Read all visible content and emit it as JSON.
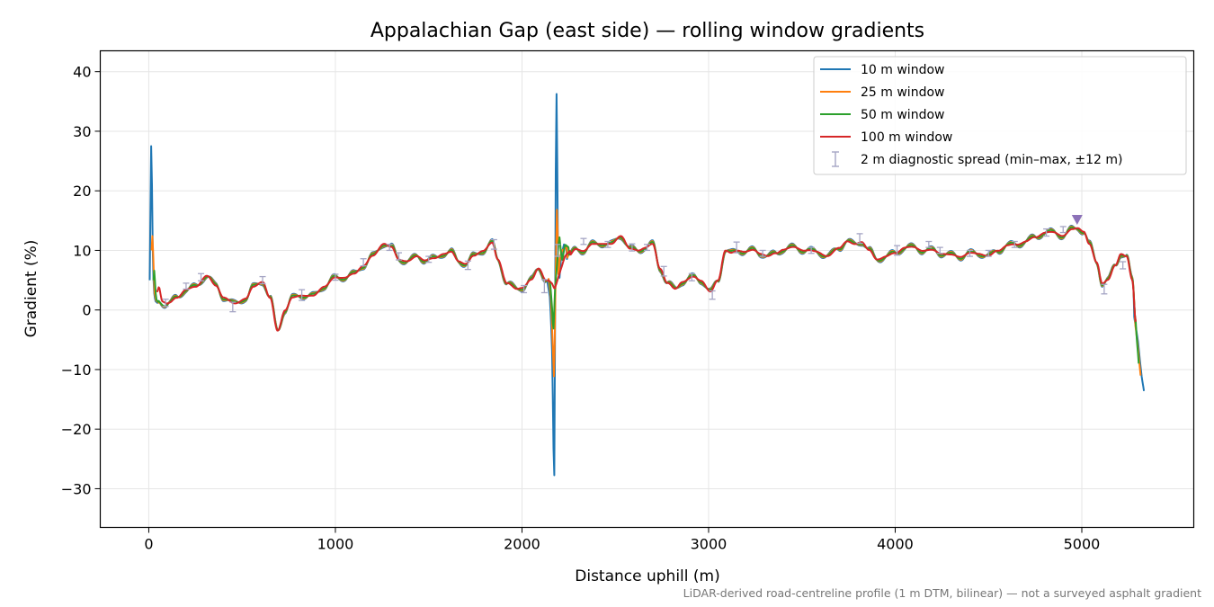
{
  "chart_data": {
    "type": "line",
    "title": "Appalachian Gap (east side) — rolling window gradients",
    "xlabel": "Distance uphill (m)",
    "ylabel": "Gradient (%)",
    "xlim": [
      -260,
      5600
    ],
    "ylim": [
      -36.5,
      43.5
    ],
    "xticks": [
      0,
      1000,
      2000,
      3000,
      4000,
      5000
    ],
    "yticks": [
      -30,
      -20,
      -10,
      0,
      10,
      20,
      30,
      40
    ],
    "grid": true,
    "legend_position": "top-right",
    "footnote": "LiDAR-derived road-centreline profile (1 m DTM, bilinear) — not a surveyed asphalt gradient",
    "base_profile": {
      "x": [
        50,
        90,
        110,
        150,
        200,
        250,
        310,
        360,
        400,
        460,
        520,
        560,
        610,
        650,
        690,
        730,
        770,
        820,
        880,
        940,
        1000,
        1050,
        1100,
        1150,
        1200,
        1260,
        1300,
        1340,
        1390,
        1440,
        1480,
        1530,
        1580,
        1620,
        1660,
        1700,
        1740,
        1790,
        1840,
        1870,
        1920,
        1970,
        2000,
        2050,
        2090,
        2130,
        2170,
        2210,
        2250,
        2290,
        2330,
        2380,
        2430,
        2480,
        2530,
        2580,
        2620,
        2660,
        2700,
        2740,
        2780,
        2820,
        2860,
        2920,
        2960,
        3010,
        3050,
        3090,
        3120,
        3160,
        3200,
        3240,
        3280,
        3320,
        3360,
        3400,
        3460,
        3520,
        3580,
        3640,
        3700,
        3740,
        3780,
        3820,
        3860,
        3900,
        3950,
        4000,
        4050,
        4100,
        4150,
        4200,
        4250,
        4300,
        4350,
        4400,
        4450,
        4500,
        4550,
        4600,
        4650,
        4700,
        4750,
        4800,
        4850,
        4900,
        4950,
        4980,
        5010,
        5040,
        5080,
        5110,
        5140,
        5180,
        5210,
        5240,
        5270,
        5290,
        5310
      ],
      "y": [
        1.5,
        1.0,
        1.2,
        2.0,
        3.5,
        3.8,
        5.8,
        4.0,
        2.2,
        1.0,
        2.0,
        3.8,
        4.8,
        2.0,
        -3.5,
        0.0,
        2.0,
        2.5,
        2.3,
        4.0,
        5.4,
        5.5,
        6.0,
        7.5,
        9.0,
        11.2,
        10.5,
        8.5,
        8.2,
        9.0,
        8.4,
        8.6,
        9.5,
        9.7,
        8.2,
        7.8,
        9.0,
        10.0,
        11.2,
        8.5,
        4.5,
        3.5,
        3.8,
        5.0,
        7.0,
        5.0,
        4.0,
        6.0,
        9.0,
        10.2,
        10.0,
        11.0,
        11.2,
        11.0,
        12.5,
        10.2,
        10.0,
        10.5,
        11.0,
        7.0,
        4.5,
        3.5,
        4.8,
        5.5,
        5.0,
        3.0,
        5.0,
        10.0,
        9.5,
        10.0,
        9.8,
        10.0,
        9.5,
        9.0,
        9.5,
        10.2,
        10.5,
        10.0,
        9.8,
        9.0,
        10.5,
        11.5,
        11.0,
        11.5,
        10.0,
        8.5,
        9.0,
        9.5,
        10.5,
        10.5,
        10.0,
        10.0,
        9.5,
        9.2,
        9.0,
        9.5,
        9.5,
        9.0,
        10.0,
        10.8,
        11.0,
        11.5,
        12.2,
        13.0,
        13.0,
        12.5,
        13.5,
        13.8,
        13.2,
        11.0,
        8.0,
        4.5,
        5.0,
        7.5,
        9.5,
        9.0,
        5.0,
        -2.0,
        -8.0
      ]
    },
    "series": [
      {
        "name": "10 m window",
        "color": "#1f77b4",
        "amplitude": 1.0,
        "x": [
          5,
          10,
          14,
          18,
          22,
          28,
          35,
          45,
          60,
          2135,
          2150,
          2160,
          2168,
          2172,
          2176,
          2180,
          2186,
          2192,
          2200,
          2210,
          2225,
          2240,
          5280,
          5300,
          5320,
          5335
        ],
        "y": [
          5,
          20,
          30,
          18,
          8,
          3,
          1.5,
          1.2,
          1.3,
          5.0,
          2.0,
          -5,
          -20,
          -33,
          -12,
          20,
          39.5,
          10,
          5,
          9,
          11,
          10.5,
          -1,
          -5,
          -11,
          -14
        ]
      },
      {
        "name": "25 m window",
        "color": "#ff7f0e",
        "amplitude": 0.8,
        "x": [
          15,
          20,
          25,
          30,
          40,
          55,
          2140,
          2155,
          2165,
          2172,
          2180,
          2188,
          2195,
          2205,
          2215,
          2240,
          5285,
          5300,
          5318
        ],
        "y": [
          10,
          13,
          8,
          3,
          1.5,
          1.2,
          6,
          2,
          -6,
          -12,
          5,
          18.5,
          6,
          9,
          10,
          10.5,
          -2,
          -6,
          -12
        ]
      },
      {
        "name": "50 m window",
        "color": "#2ca02c",
        "amplitude": 0.6,
        "x": [
          25,
          30,
          35,
          40,
          50,
          2150,
          2160,
          2168,
          2176,
          2186,
          2200,
          2215,
          2230,
          2250,
          5290,
          5305
        ],
        "y": [
          5,
          7,
          3.5,
          1.8,
          1.3,
          5,
          1,
          -4,
          3,
          7,
          12.5,
          8,
          11,
          10.5,
          -3,
          -9
        ]
      },
      {
        "name": "100 m window",
        "color": "#d62728",
        "amplitude": 0.15,
        "x": [
          45,
          55,
          70,
          100,
          2140,
          2160,
          2175,
          2190,
          2210,
          2230,
          2260,
          5290
        ],
        "y": [
          3,
          4,
          1.5,
          1.0,
          5,
          4.5,
          3.5,
          5,
          7,
          9,
          10,
          -1.5
        ]
      }
    ],
    "diagnostic_spread": {
      "name": "2 m diagnostic spread (min–max, ±12 m)",
      "color": "#a5a5c4",
      "x": [
        90,
        200,
        280,
        450,
        610,
        820,
        1000,
        1150,
        1290,
        1340,
        1500,
        1710,
        1850,
        2010,
        2120,
        2190,
        2330,
        2460,
        2590,
        2670,
        2760,
        2910,
        3020,
        3150,
        3290,
        3550,
        3810,
        4010,
        4180,
        4240,
        4400,
        4500,
        4640,
        4810,
        4900,
        5120,
        5220
      ],
      "y": [
        1.2,
        4.0,
        5.5,
        0.5,
        5.0,
        2.5,
        5.5,
        8.0,
        10.5,
        9.0,
        8.5,
        7.5,
        11.0,
        3.5,
        4.0,
        10.0,
        11.5,
        11.0,
        10.5,
        10.5,
        6.5,
        5.5,
        2.5,
        10.5,
        9.5,
        10.0,
        12.0,
        10.0,
        11.0,
        10.0,
        9.5,
        9.5,
        11.0,
        13.0,
        13.5,
        3.5,
        7.5
      ],
      "half_range": [
        0.6,
        0.5,
        0.6,
        0.8,
        0.6,
        0.9,
        0.5,
        0.6,
        0.5,
        0.6,
        0.5,
        0.7,
        0.8,
        0.6,
        1.1,
        1.0,
        0.5,
        0.5,
        0.6,
        0.5,
        0.8,
        0.6,
        0.7,
        0.9,
        0.5,
        0.5,
        0.8,
        0.8,
        0.5,
        0.5,
        0.5,
        0.5,
        0.5,
        0.6,
        0.5,
        0.8,
        0.6
      ]
    },
    "peak_marker": {
      "x": 4975,
      "y": 15.2,
      "color": "#8c72b8"
    },
    "legend": [
      {
        "label": "10 m window",
        "color": "#1f77b4",
        "kind": "line"
      },
      {
        "label": "25 m window",
        "color": "#ff7f0e",
        "kind": "line"
      },
      {
        "label": "50 m window",
        "color": "#2ca02c",
        "kind": "line"
      },
      {
        "label": "100 m window",
        "color": "#d62728",
        "kind": "line"
      },
      {
        "label": "2 m diagnostic spread (min–max, ±12 m)",
        "color": "#a5a5c4",
        "kind": "errorbar"
      }
    ]
  }
}
